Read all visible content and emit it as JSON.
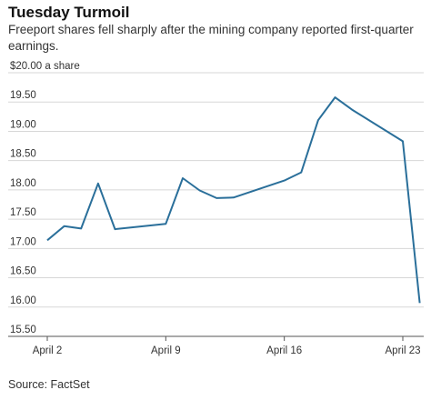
{
  "header": {
    "title": "Tuesday Turmoil",
    "subtitle": "Freeport shares fell sharply after the mining company reported first-quarter earnings."
  },
  "footer": {
    "source": "Source: FactSet"
  },
  "chart_data": {
    "type": "line",
    "title": "Tuesday Turmoil",
    "subtitle": "Freeport shares fell sharply after the mining company reported first-quarter earnings.",
    "ylabel": "$20.00 a share",
    "xlabel": "",
    "ylim": [
      15.5,
      20.0
    ],
    "grid": true,
    "line_color": "#2a6f9a",
    "y_ticks": [
      {
        "value": 20.0,
        "label": "$20.00 a share"
      },
      {
        "value": 19.5,
        "label": "19.50"
      },
      {
        "value": 19.0,
        "label": "19.00"
      },
      {
        "value": 18.5,
        "label": "18.50"
      },
      {
        "value": 18.0,
        "label": "18.00"
      },
      {
        "value": 17.5,
        "label": "17.50"
      },
      {
        "value": 17.0,
        "label": "17.00"
      },
      {
        "value": 16.5,
        "label": "16.50"
      },
      {
        "value": 16.0,
        "label": "16.00"
      },
      {
        "value": 15.5,
        "label": "15.50"
      }
    ],
    "x_ticks": [
      {
        "value": 0,
        "label": "April 2"
      },
      {
        "value": 7,
        "label": "April 9"
      },
      {
        "value": 14,
        "label": "April 16"
      },
      {
        "value": 21,
        "label": "April 23"
      }
    ],
    "series": [
      {
        "x": [
          0,
          1,
          2,
          3,
          4,
          7,
          8,
          9,
          10,
          11,
          14,
          15,
          16,
          17,
          18,
          21,
          22
        ],
        "values": [
          17.14,
          17.38,
          17.34,
          18.11,
          17.33,
          17.42,
          18.2,
          17.99,
          17.86,
          17.87,
          18.16,
          18.3,
          19.19,
          19.58,
          19.37,
          18.83,
          16.07
        ]
      }
    ]
  }
}
